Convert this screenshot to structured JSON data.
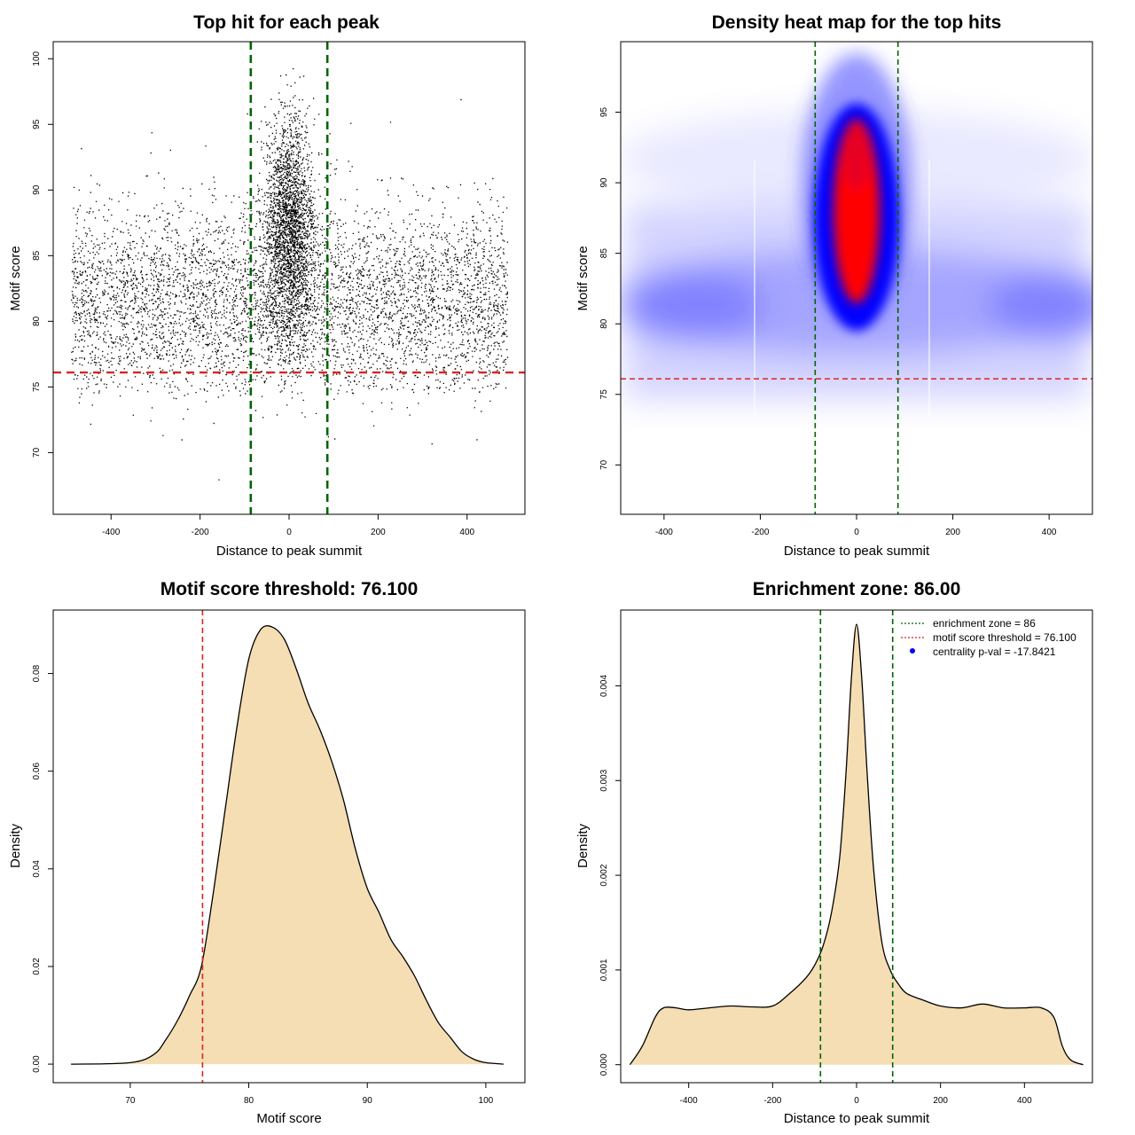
{
  "colors": {
    "enrichment_line": "#006400",
    "threshold_line": "#dd2222",
    "density_fill": "#f5deb3",
    "heat_low": "#ffffff",
    "heat_mid": "#0000ff",
    "heat_high": "#ff0000",
    "legend_dot": "#0000ff"
  },
  "chart_data": [
    {
      "type": "scatter",
      "title": "Top hit for each peak",
      "xlabel": "Distance to peak summit",
      "ylabel": "Motif score",
      "xlim": [
        -530,
        530
      ],
      "ylim": [
        65.3,
        101.3
      ],
      "xticks": [
        -400,
        -200,
        0,
        200,
        400
      ],
      "yticks": [
        70,
        75,
        80,
        85,
        90,
        95,
        100
      ],
      "enrichment_zone": [
        -86,
        86
      ],
      "threshold": 76.1,
      "point_distribution": {
        "x_range": [
          -490,
          490
        ],
        "background_score_mean": 81.5,
        "central_score_mean": 87,
        "score_range": [
          66.5,
          99.4
        ],
        "approx_points": 14000
      }
    },
    {
      "type": "heatmap",
      "title": "Density heat map for the top hits",
      "xlabel": "Distance to peak summit",
      "ylabel": "Motif score",
      "xlim": [
        -490,
        490
      ],
      "ylim": [
        66.5,
        100
      ],
      "xticks": [
        -400,
        -200,
        0,
        200,
        400
      ],
      "yticks": [
        70,
        75,
        80,
        85,
        90,
        95
      ],
      "enrichment_zone": [
        -86,
        86
      ],
      "threshold": 76.1,
      "hotspot": {
        "x": 0,
        "y": 87.5
      }
    },
    {
      "type": "area",
      "title": "Motif score threshold: 76.100",
      "xlabel": "Motif score",
      "ylabel": "Density",
      "xlim": [
        63.5,
        103.3
      ],
      "ylim": [
        -0.0038,
        0.093
      ],
      "xticks": [
        70,
        80,
        90,
        100
      ],
      "yticks": [
        0.0,
        0.02,
        0.04,
        0.06,
        0.08
      ],
      "ytick_labels": [
        "0.00",
        "0.02",
        "0.04",
        "0.06",
        "0.08"
      ],
      "threshold": 76.1,
      "x": [
        65,
        70,
        72,
        73,
        74,
        75,
        76,
        77,
        78,
        79,
        80,
        81,
        82,
        83,
        84,
        85,
        86,
        87,
        88,
        89,
        90,
        91,
        92,
        93,
        94,
        95,
        96,
        97,
        98,
        99,
        100,
        101.5
      ],
      "y": [
        0.0,
        0.0003,
        0.002,
        0.005,
        0.009,
        0.014,
        0.02,
        0.035,
        0.052,
        0.069,
        0.083,
        0.089,
        0.0895,
        0.087,
        0.081,
        0.074,
        0.0685,
        0.062,
        0.054,
        0.044,
        0.036,
        0.031,
        0.0255,
        0.022,
        0.018,
        0.013,
        0.0085,
        0.0055,
        0.0025,
        0.001,
        0.0003,
        0.0
      ]
    },
    {
      "type": "area",
      "title": "Enrichment zone: 86.00",
      "xlabel": "Distance to peak summit",
      "ylabel": "Density",
      "xlim": [
        -562,
        562
      ],
      "ylim": [
        -0.00019,
        0.0048
      ],
      "xticks": [
        -400,
        -200,
        0,
        200,
        400
      ],
      "yticks": [
        0.0,
        0.001,
        0.002,
        0.003,
        0.004
      ],
      "ytick_labels": [
        "0.000",
        "0.001",
        "0.002",
        "0.003",
        "0.004"
      ],
      "enrichment_zone": [
        -86,
        86
      ],
      "x": [
        -540,
        -510,
        -480,
        -460,
        -430,
        -400,
        -350,
        -300,
        -250,
        -200,
        -160,
        -120,
        -100,
        -80,
        -60,
        -40,
        -25,
        -12,
        0,
        12,
        25,
        40,
        60,
        80,
        100,
        120,
        160,
        200,
        250,
        300,
        350,
        400,
        440,
        470,
        490,
        510,
        540
      ],
      "y": [
        0.0,
        0.0002,
        0.0005,
        0.0006,
        0.0006,
        0.00058,
        0.0006,
        0.00062,
        0.00061,
        0.00062,
        0.00075,
        0.00092,
        0.00105,
        0.00125,
        0.0016,
        0.0022,
        0.0031,
        0.0041,
        0.00465,
        0.0041,
        0.0031,
        0.0021,
        0.0013,
        0.001,
        0.00085,
        0.00075,
        0.00068,
        0.00062,
        0.0006,
        0.00064,
        0.0006,
        0.0006,
        0.0006,
        0.0005,
        0.0002,
        5e-05,
        0.0
      ]
    }
  ],
  "legend": {
    "items": [
      {
        "label": "enrichment zone = 86",
        "color": "#006400",
        "style": "dotted"
      },
      {
        "label": "motif score threshold = 76.100",
        "color": "#dd2222",
        "style": "dotted"
      },
      {
        "label": "centrality p-val = -17.8421",
        "color": "#0000ff",
        "style": "point"
      }
    ],
    "placement": "top-right"
  }
}
